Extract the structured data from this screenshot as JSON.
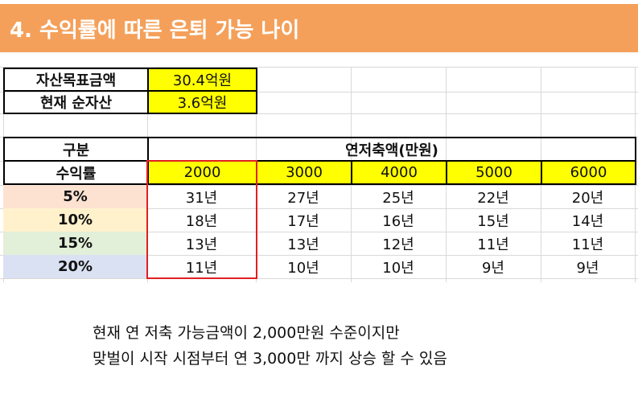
{
  "title": "4. 수익률에 따른 은퇴 가능 나이",
  "asset": {
    "target_label": "자산목표금액",
    "target_value": "30.4억원",
    "net_label": "현재 순자산",
    "net_value": "3.6억원"
  },
  "table": {
    "category_label": "구분",
    "rate_label": "수익률",
    "savings_header": "연저축액(만원)",
    "columns": [
      "2000",
      "3000",
      "4000",
      "5000",
      "6000"
    ],
    "rows": [
      {
        "rate": "5%",
        "color": "#fde2d2",
        "values": [
          "31년",
          "27년",
          "25년",
          "22년",
          "20년"
        ]
      },
      {
        "rate": "10%",
        "color": "#fff1cc",
        "values": [
          "18년",
          "17년",
          "16년",
          "15년",
          "14년"
        ]
      },
      {
        "rate": "15%",
        "color": "#e2efd9",
        "values": [
          "13년",
          "13년",
          "12년",
          "11년",
          "11년"
        ]
      },
      {
        "rate": "20%",
        "color": "#d9e1f2",
        "values": [
          "11년",
          "10년",
          "10년",
          "9년",
          "9년"
        ]
      }
    ]
  },
  "note": {
    "line1": "현재 연 저축 가능금액이 2,000만원 수준이지만",
    "line2": "맞벌이 시작 시점부터 연 3,000만 까지 상승 할 수 있음"
  },
  "colors": {
    "title_bg": "#f4a05a",
    "highlight": "#ffff00",
    "red_outline": "#e02020"
  }
}
